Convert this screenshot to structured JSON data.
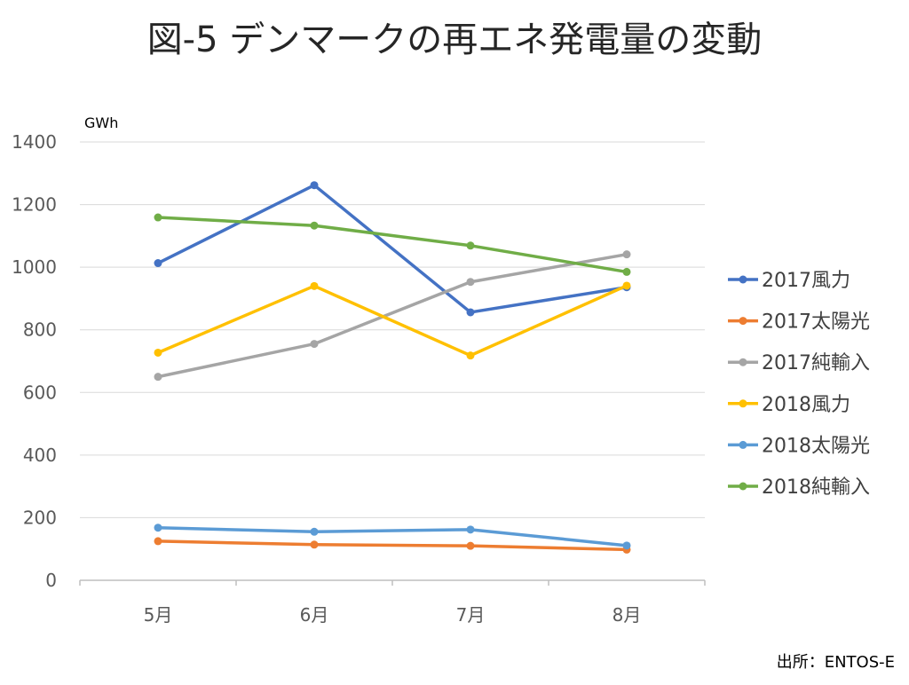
{
  "title": "図-5 デンマークの再エネ発電量の変動",
  "source": "出所：ENTOS-E",
  "chart_data": {
    "type": "line",
    "ylabel": "GWh",
    "ylim": [
      0,
      1400
    ],
    "yticks": [
      0,
      200,
      400,
      600,
      800,
      1000,
      1200,
      1400
    ],
    "categories": [
      "5月",
      "6月",
      "7月",
      "8月"
    ],
    "grid": true,
    "legend": "right",
    "series": [
      {
        "name": "2017風力",
        "color": "#4472C4",
        "values": [
          1013,
          1262,
          856,
          936
        ]
      },
      {
        "name": "2017太陽光",
        "color": "#ED7D31",
        "values": [
          125,
          114,
          110,
          98
        ]
      },
      {
        "name": "2017純輸入",
        "color": "#A5A5A5",
        "values": [
          650,
          755,
          953,
          1041
        ]
      },
      {
        "name": "2018風力",
        "color": "#FFC000",
        "values": [
          727,
          940,
          718,
          941
        ]
      },
      {
        "name": "2018太陽光",
        "color": "#5B9BD5",
        "values": [
          168,
          155,
          162,
          111
        ]
      },
      {
        "name": "2018純輸入",
        "color": "#70AD47",
        "values": [
          1159,
          1133,
          1069,
          985
        ]
      }
    ]
  }
}
